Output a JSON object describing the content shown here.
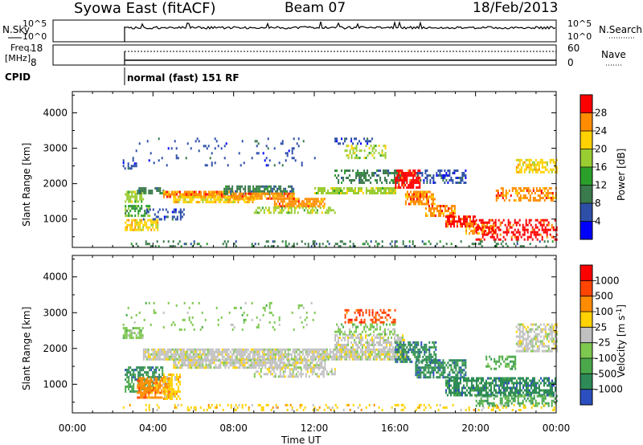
{
  "header": {
    "station": "Syowa East (fitACF)",
    "beam": "Beam 07",
    "date": "18/Feb/2013"
  },
  "summary": {
    "nsky_label": "N.Sky",
    "nsky_ticks": [
      "10^5",
      "10^0"
    ],
    "nsearch_label": "N.Search",
    "nsearch_ticks": [
      "10^5",
      "10^0"
    ],
    "freq_label_line1": "Freq.",
    "freq_label_line2": "[MHz]",
    "freq_ticks": [
      "18",
      "8"
    ],
    "nave_label": "Nave",
    "nave_ticks": [
      "60",
      "0"
    ],
    "cpid_label": "CPID",
    "cpid_value": "normal (fast) 151 RF"
  },
  "chart_data": [
    {
      "type": "heatmap",
      "name": "power",
      "xlabel": "Time UT",
      "ylabel": "Slant Range [km]",
      "xlim": [
        0,
        24
      ],
      "ylim": [
        200,
        4600
      ],
      "yticks": [
        "1000",
        "2000",
        "3000",
        "4000"
      ],
      "colorbar_label": "Power [dB]",
      "colorbar_ticks": [
        "4",
        "8",
        "12",
        "16",
        "20",
        "24",
        "28"
      ],
      "colorbar_colors": [
        "#0000ff",
        "#2e4fa8",
        "#3a7a4c",
        "#2aa02a",
        "#9acd32",
        "#ffd200",
        "#ff8c00",
        "#ff0000"
      ],
      "data_start_hour": 2.5,
      "regions": [
        {
          "t": [
            2.5,
            3.2
          ],
          "r": [
            2400,
            2600
          ],
          "c": 1,
          "d": 0.6
        },
        {
          "t": [
            2.6,
            3.5
          ],
          "r": [
            1500,
            1800
          ],
          "c": 4,
          "d": 0.7
        },
        {
          "t": [
            2.6,
            3.8
          ],
          "r": [
            1100,
            1400
          ],
          "c": 3,
          "d": 0.6
        },
        {
          "t": [
            2.6,
            4.2
          ],
          "r": [
            700,
            1000
          ],
          "c": 5,
          "d": 0.7
        },
        {
          "t": [
            3.2,
            4.5
          ],
          "r": [
            1700,
            1900
          ],
          "c": 2,
          "d": 0.6
        },
        {
          "t": [
            3.5,
            5.5
          ],
          "r": [
            1000,
            1300
          ],
          "c": 1,
          "d": 0.35
        },
        {
          "t": [
            4.5,
            8.0
          ],
          "r": [
            1600,
            1800
          ],
          "c": 6,
          "d": 0.85
        },
        {
          "t": [
            5.0,
            9.0
          ],
          "r": [
            1450,
            1650
          ],
          "c": 5,
          "d": 0.8
        },
        {
          "t": [
            7.5,
            11.0
          ],
          "r": [
            1700,
            1950
          ],
          "c": 2,
          "d": 0.7
        },
        {
          "t": [
            8.0,
            11.0
          ],
          "r": [
            1550,
            1750
          ],
          "c": 6,
          "d": 0.85
        },
        {
          "t": [
            10.0,
            12.5
          ],
          "r": [
            1350,
            1600
          ],
          "c": 6,
          "d": 0.8
        },
        {
          "t": [
            9.0,
            13.0
          ],
          "r": [
            1150,
            1350
          ],
          "c": 4,
          "d": 0.5
        },
        {
          "t": [
            12.0,
            16.0
          ],
          "r": [
            1700,
            1900
          ],
          "c": 4,
          "d": 0.8
        },
        {
          "t": [
            13.0,
            16.5
          ],
          "r": [
            2000,
            2400
          ],
          "c": 2,
          "d": 0.5
        },
        {
          "t": [
            13.5,
            15.5
          ],
          "r": [
            2700,
            3100
          ],
          "c": 4,
          "d": 0.35
        },
        {
          "t": [
            13.0,
            15.0
          ],
          "r": [
            3100,
            3300
          ],
          "c": 1,
          "d": 0.3
        },
        {
          "t": [
            16.0,
            17.2
          ],
          "r": [
            1900,
            2400
          ],
          "c": 7,
          "d": 0.75
        },
        {
          "t": [
            16.5,
            18.0
          ],
          "r": [
            1400,
            1800
          ],
          "c": 6,
          "d": 0.7
        },
        {
          "t": [
            17.5,
            19.0
          ],
          "r": [
            1100,
            1400
          ],
          "c": 6,
          "d": 0.7
        },
        {
          "t": [
            18.5,
            20.0
          ],
          "r": [
            800,
            1100
          ],
          "c": 7,
          "d": 0.75
        },
        {
          "t": [
            19.5,
            21.0
          ],
          "r": [
            600,
            900
          ],
          "c": 6,
          "d": 0.6
        },
        {
          "t": [
            20.0,
            24.0
          ],
          "r": [
            400,
            1000
          ],
          "c": 7,
          "d": 0.45
        },
        {
          "t": [
            21.0,
            24.0
          ],
          "r": [
            1500,
            1900
          ],
          "c": 6,
          "d": 0.5
        },
        {
          "t": [
            22.0,
            24.0
          ],
          "r": [
            2300,
            2700
          ],
          "c": 5,
          "d": 0.6
        },
        {
          "t": [
            17.0,
            19.5
          ],
          "r": [
            2000,
            2400
          ],
          "c": 1,
          "d": 0.35
        },
        {
          "t": [
            2.5,
            24.0
          ],
          "r": [
            250,
            400
          ],
          "c": 2,
          "d": 0.2
        },
        {
          "t": [
            2.5,
            12.0
          ],
          "r": [
            2500,
            3300
          ],
          "c": 1,
          "d": 0.06
        }
      ]
    },
    {
      "type": "heatmap",
      "name": "velocity",
      "xlabel": "Time UT",
      "ylabel": "Slant Range [km]",
      "xlim": [
        0,
        24
      ],
      "ylim": [
        200,
        4600
      ],
      "xticks": [
        "00:00",
        "04:00",
        "08:00",
        "12:00",
        "16:00",
        "20:00",
        "00:00"
      ],
      "yticks": [
        "1000",
        "2000",
        "3000",
        "4000"
      ],
      "colorbar_label": "Velocity [m s",
      "colorbar_label_superscript": "-1",
      "colorbar_label_close": "]",
      "colorbar_ticks": [
        "1000",
        "500",
        "100",
        "25",
        "-25",
        "-100",
        "-500",
        "-1000"
      ],
      "colorbar_colors": [
        "#2c4fbf",
        "#2e8b57",
        "#4aa84a",
        "#7ec850",
        "#c0c0c0",
        "#ffd200",
        "#ff8c00",
        "#ff4500",
        "#ff0000"
      ],
      "data_start_hour": 2.5,
      "regions": [
        {
          "t": [
            2.5,
            3.5
          ],
          "r": [
            2300,
            2600
          ],
          "c": 3,
          "d": 0.6
        },
        {
          "t": [
            2.6,
            4.5
          ],
          "r": [
            1100,
            1500
          ],
          "c": 1,
          "d": 0.65
        },
        {
          "t": [
            2.6,
            4.0
          ],
          "r": [
            800,
            1100
          ],
          "c": 2,
          "d": 0.6
        },
        {
          "t": [
            3.2,
            4.8
          ],
          "r": [
            600,
            1200
          ],
          "c": 6,
          "d": 0.8
        },
        {
          "t": [
            4.5,
            5.3
          ],
          "r": [
            600,
            1300
          ],
          "c": 5,
          "d": 0.6
        },
        {
          "t": [
            3.5,
            16.5
          ],
          "r": [
            1700,
            2000
          ],
          "c": 4,
          "d": 0.85
        },
        {
          "t": [
            5.0,
            12.5
          ],
          "r": [
            1450,
            1700
          ],
          "c": 4,
          "d": 0.8
        },
        {
          "t": [
            9.0,
            13.0
          ],
          "r": [
            1200,
            1450
          ],
          "c": 4,
          "d": 0.5
        },
        {
          "t": [
            13.0,
            16.5
          ],
          "r": [
            2000,
            2400
          ],
          "c": 4,
          "d": 0.6
        },
        {
          "t": [
            13.5,
            16.0
          ],
          "r": [
            2700,
            3100
          ],
          "c": 7,
          "d": 0.4
        },
        {
          "t": [
            13.0,
            16.0
          ],
          "r": [
            2400,
            2700
          ],
          "c": 3,
          "d": 0.35
        },
        {
          "t": [
            16.0,
            18.0
          ],
          "r": [
            1600,
            2200
          ],
          "c": 1,
          "d": 0.7
        },
        {
          "t": [
            17.0,
            19.5
          ],
          "r": [
            1200,
            1700
          ],
          "c": 1,
          "d": 0.65
        },
        {
          "t": [
            18.5,
            24.0
          ],
          "r": [
            700,
            1200
          ],
          "c": 1,
          "d": 0.7
        },
        {
          "t": [
            20.0,
            24.0
          ],
          "r": [
            400,
            700
          ],
          "c": 2,
          "d": 0.5
        },
        {
          "t": [
            22.0,
            24.0
          ],
          "r": [
            1900,
            2700
          ],
          "c": 4,
          "d": 0.6
        },
        {
          "t": [
            20.5,
            22.0
          ],
          "r": [
            1400,
            1800
          ],
          "c": 2,
          "d": 0.4
        },
        {
          "t": [
            2.5,
            24.0
          ],
          "r": [
            250,
            450
          ],
          "c": 5,
          "d": 0.2
        },
        {
          "t": [
            2.5,
            12.0
          ],
          "r": [
            2500,
            3300
          ],
          "c": 3,
          "d": 0.06
        }
      ]
    }
  ]
}
